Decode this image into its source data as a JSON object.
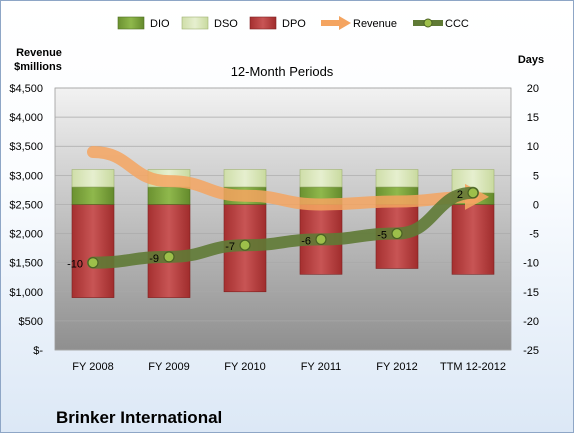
{
  "company": "Brinker International",
  "chart_data": {
    "type": "bar",
    "title": "12-Month Periods",
    "categories": [
      "FY 2008",
      "FY 2009",
      "FY 2010",
      "FY 2011",
      "FY 2012",
      "TTM 12-2012"
    ],
    "y_left": {
      "label_line1": "Revenue",
      "label_line2": "$millions",
      "range": [
        0,
        4500
      ],
      "ticks": [
        0,
        500,
        1000,
        1500,
        2000,
        2500,
        3000,
        3500,
        4000,
        4500
      ],
      "tick_labels": [
        "$-",
        "$500",
        "$1,000",
        "$1,500",
        "$2,000",
        "$2,500",
        "$3,000",
        "$3,500",
        "$4,000",
        "$4,500"
      ]
    },
    "y_right": {
      "label": "Days",
      "range": [
        -25,
        20
      ],
      "ticks": [
        20,
        15,
        10,
        5,
        0,
        -5,
        -10,
        -15,
        -20,
        -25
      ],
      "tick_labels": [
        "20",
        "15",
        "10",
        "5",
        "0",
        "-5",
        "-10",
        "-15",
        "-20",
        "-25"
      ]
    },
    "series": [
      {
        "name": "DIO",
        "axis": "right",
        "color": "#77a033",
        "values": [
          3,
          3,
          3,
          3,
          3,
          2
        ]
      },
      {
        "name": "DSO",
        "axis": "right",
        "color": "#d7e4b5",
        "values": [
          3,
          3,
          3,
          3,
          3,
          4
        ]
      },
      {
        "name": "DPO",
        "axis": "right",
        "color": "#b23a3a",
        "values": [
          16,
          16,
          15,
          12,
          11,
          12
        ]
      },
      {
        "name": "Revenue",
        "axis": "left",
        "color": "#f2a057",
        "values": [
          3400,
          2900,
          2650,
          2500,
          2550,
          2630
        ]
      },
      {
        "name": "CCC",
        "axis": "right",
        "color": "#5f7a35",
        "values": [
          -10,
          -9,
          -7,
          -6,
          -5,
          2
        ]
      }
    ],
    "ccc_labels": [
      "-10",
      "-9",
      "-7",
      "-6",
      "-5",
      "2"
    ],
    "grid": true,
    "legend": "top"
  }
}
